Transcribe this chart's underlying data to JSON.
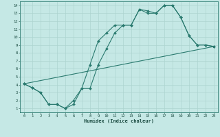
{
  "xlabel": "Humidex (Indice chaleur)",
  "bg_color": "#c5e8e5",
  "grid_color": "#aed4d0",
  "line_color": "#2a7a6f",
  "xlim": [
    -0.5,
    23.5
  ],
  "ylim": [
    0.5,
    14.5
  ],
  "xticks": [
    0,
    1,
    2,
    3,
    4,
    5,
    6,
    7,
    8,
    9,
    10,
    11,
    12,
    13,
    14,
    15,
    16,
    17,
    18,
    19,
    20,
    21,
    22,
    23
  ],
  "yticks": [
    1,
    2,
    3,
    4,
    5,
    6,
    7,
    8,
    9,
    10,
    11,
    12,
    13,
    14
  ],
  "line1_x": [
    0,
    1,
    2,
    3,
    4,
    5,
    6,
    7,
    8,
    9,
    10,
    11,
    12,
    13,
    14,
    15,
    16,
    17,
    18,
    19,
    20,
    21,
    22,
    23
  ],
  "line1_y": [
    4.1,
    3.6,
    3.0,
    1.5,
    1.5,
    1.0,
    1.5,
    3.5,
    3.5,
    6.5,
    8.5,
    10.5,
    11.5,
    11.5,
    13.5,
    13.3,
    13.0,
    14.0,
    14.0,
    12.5,
    10.2,
    9.0,
    9.0,
    8.8
  ],
  "line2_x": [
    0,
    1,
    2,
    3,
    4,
    5,
    6,
    7,
    8,
    9,
    10,
    11,
    12,
    13,
    14,
    15,
    16,
    17,
    18,
    19,
    20,
    21,
    22,
    23
  ],
  "line2_y": [
    4.1,
    3.6,
    3.0,
    1.5,
    1.5,
    1.0,
    2.0,
    3.5,
    6.5,
    9.5,
    10.5,
    11.5,
    11.5,
    11.5,
    13.5,
    13.0,
    13.0,
    14.0,
    14.0,
    12.5,
    10.2,
    9.0,
    9.0,
    8.8
  ],
  "line3_x": [
    0,
    23
  ],
  "line3_y": [
    4.1,
    8.8
  ]
}
